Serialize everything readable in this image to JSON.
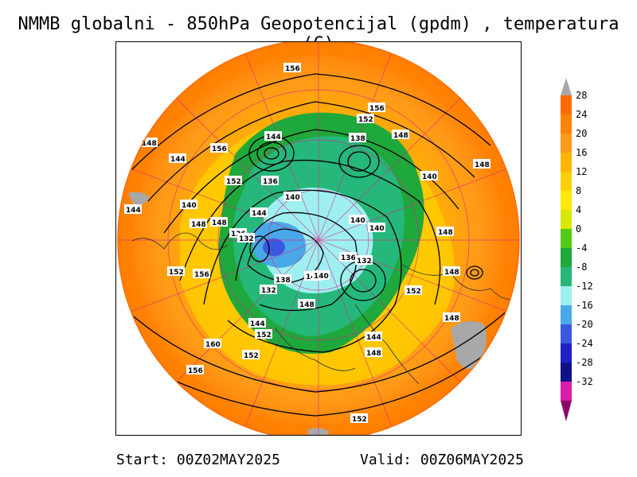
{
  "title": "NMMB globalni - 850hPa Geopotencijal (gpdm) , temperatura (C)",
  "footer": {
    "start": "Start: 00Z02MAY2025",
    "valid": "Valid: 00Z06MAY2025"
  },
  "colorbar": {
    "labels": [
      "28",
      "24",
      "20",
      "16",
      "12",
      "8",
      "4",
      "0",
      "-4",
      "-8",
      "-12",
      "-16",
      "-20",
      "-24",
      "-28",
      "-32"
    ],
    "colors": [
      "#ff6a00",
      "#ff8200",
      "#ff9a18",
      "#ffb400",
      "#ffd000",
      "#ffea00",
      "#d8e800",
      "#56c818",
      "#1fa83c",
      "#25b87a",
      "#9ef0f0",
      "#4aa8e8",
      "#3a58e0",
      "#2020c8",
      "#10108a",
      "#d81ea8"
    ],
    "top_arrow_color": "#a8a8a8",
    "bottom_arrow_color": "#8a0a6a"
  },
  "map": {
    "contour_labels": [
      "156",
      "156",
      "152",
      "148",
      "144",
      "156",
      "138",
      "148",
      "144",
      "140",
      "148",
      "152",
      "136",
      "140",
      "144",
      "140",
      "148",
      "140",
      "136",
      "140",
      "144",
      "148",
      "148",
      "152",
      "156",
      "132",
      "136",
      "140",
      "132",
      "138",
      "132",
      "140",
      "148",
      "152",
      "144",
      "152",
      "148",
      "160",
      "156",
      "152",
      "148",
      "152",
      "144",
      "148"
    ]
  }
}
